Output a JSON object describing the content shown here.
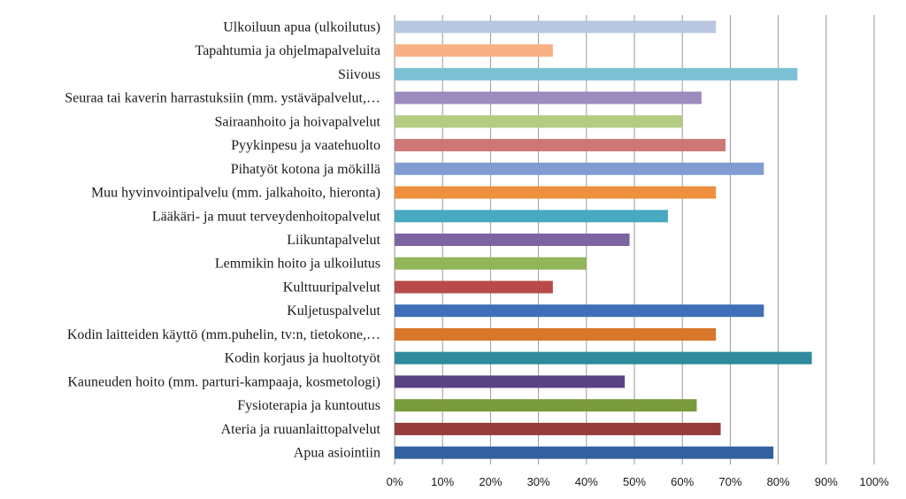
{
  "chart_data": {
    "type": "bar",
    "orientation": "horizontal",
    "title": "",
    "xlabel": "",
    "ylabel": "",
    "xlim": [
      0,
      100
    ],
    "grid": true,
    "categories": [
      "Ulkoiluun apua (ulkoilutus)",
      "Tapahtumia ja ohjelmapalveluita",
      "Siivous",
      "Seuraa tai kaverin harrastuksiin (mm. ystäväpalvelut,…",
      "Sairaanhoito ja hoivapalvelut",
      "Pyykinpesu ja vaatehuolto",
      "Pihatyöt kotona ja mökillä",
      "Muu hyvinvointipalvelu (mm. jalkahoito, hieronta)",
      "Lääkäri- ja muut terveydenhoitopalvelut",
      "Liikuntapalvelut",
      "Lemmikin hoito ja ulkoilutus",
      "Kulttuuripalvelut",
      "Kuljetuspalvelut",
      "Kodin laitteiden käyttö (mm.puhelin, tv:n, tietokone,…",
      "Kodin korjaus ja huoltotyöt",
      "Kauneuden hoito (mm. parturi-kampaaja, kosmetologi)",
      "Fysioterapia ja kuntoutus",
      "Ateria ja ruuanlaittopalvelut",
      "Apua asiointiin"
    ],
    "values": [
      67,
      33,
      84,
      64,
      60,
      69,
      77,
      67,
      57,
      49,
      40,
      33,
      77,
      67,
      87,
      48,
      63,
      68,
      79
    ],
    "colors": [
      "#b9c7e2",
      "#f9b084",
      "#7bc1d4",
      "#9b8cbd",
      "#b2cc80",
      "#cd7777",
      "#7f9dd0",
      "#ee8f3e",
      "#49a9c0",
      "#7d63a1",
      "#92b558",
      "#b84a49",
      "#3f6fb7",
      "#d8762a",
      "#2f8a9c",
      "#5a4383",
      "#7a9a3e",
      "#963b3a",
      "#34609f"
    ],
    "xticks": [
      "0%",
      "10%",
      "20%",
      "30%",
      "40%",
      "50%",
      "60%",
      "70%",
      "80%",
      "90%",
      "100%"
    ]
  }
}
